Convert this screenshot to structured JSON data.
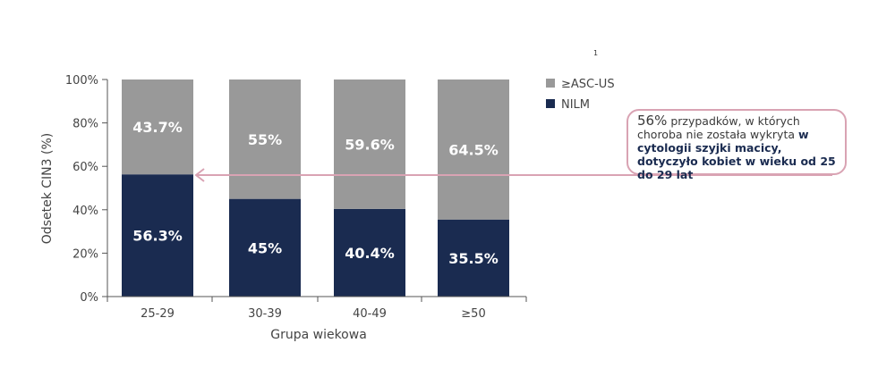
{
  "chart_data": {
    "type": "bar",
    "stacked": true,
    "categories": [
      "25-29",
      "30-39",
      "40-49",
      "≥50"
    ],
    "series": [
      {
        "name": "NILM",
        "values": [
          56.3,
          45,
          40.4,
          35.5
        ],
        "labels": [
          "56.3%",
          "45%",
          "40.4%",
          "35.5%"
        ],
        "color": "#1a2b50"
      },
      {
        "name": "≥ASC-US",
        "values": [
          43.7,
          55,
          59.6,
          64.5
        ],
        "labels": [
          "43.7%",
          "55%",
          "59.6%",
          "64.5%"
        ],
        "color": "#999999"
      }
    ],
    "xlabel": "Grupa wiekowa",
    "ylabel": "Odsetek CIN3 (%)",
    "ylim": [
      0,
      100
    ],
    "yticks": [
      "0%",
      "20%",
      "40%",
      "60%",
      "80%",
      "100%"
    ],
    "legend_order": [
      "≥ASC-US",
      "NILM"
    ],
    "legend_position": "right",
    "grid": false
  },
  "footnote": "1",
  "callout": {
    "lead": "56%",
    "text1": " przypadków, w których choroba nie została wykryta ",
    "strong": "w cytologii szyjki macicy, dotyczyło kobiet w wieku od 25 do 29 lat",
    "border_color": "#d9a3b3"
  }
}
